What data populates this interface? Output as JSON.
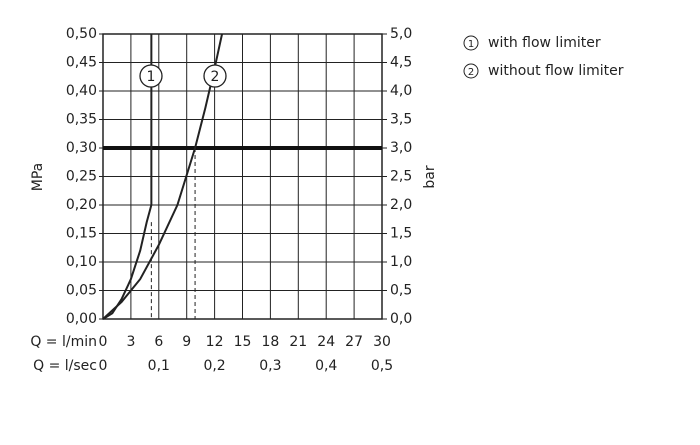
{
  "chart_data": {
    "type": "line",
    "xlabel": "Q = l/min",
    "x2label": "Q = l/sec",
    "ylabel": "MPa",
    "y2label": "bar",
    "xlim": [
      0,
      30
    ],
    "xticks": [
      0,
      3,
      6,
      9,
      12,
      15,
      18,
      21,
      24,
      27,
      30
    ],
    "x2lim": [
      0,
      0.5
    ],
    "x2ticks": [
      0,
      {
        "value": 0.1,
        "label": "0,1"
      },
      {
        "value": 0.2,
        "label": "0,2"
      },
      {
        "value": 0.3,
        "label": "0,3"
      },
      {
        "value": 0.4,
        "label": "0,4"
      },
      {
        "value": 0.5,
        "label": "0,5"
      }
    ],
    "ylim": [
      0,
      0.5
    ],
    "yticks": [
      {
        "value": 0,
        "label": "0,00"
      },
      {
        "value": 0.05,
        "label": "0,05"
      },
      {
        "value": 0.1,
        "label": "0,10"
      },
      {
        "value": 0.15,
        "label": "0,15"
      },
      {
        "value": 0.2,
        "label": "0,20"
      },
      {
        "value": 0.25,
        "label": "0,25"
      },
      {
        "value": 0.3,
        "label": "0,30"
      },
      {
        "value": 0.35,
        "label": "0,35"
      },
      {
        "value": 0.4,
        "label": "0,40"
      },
      {
        "value": 0.45,
        "label": "0,45"
      },
      {
        "value": 0.5,
        "label": "0,50"
      }
    ],
    "y2lim": [
      0,
      5
    ],
    "y2ticks": [
      {
        "value": 0,
        "label": "0,0"
      },
      {
        "value": 0.5,
        "label": "0,5"
      },
      {
        "value": 1,
        "label": "1,0"
      },
      {
        "value": 1.5,
        "label": "1,5"
      },
      {
        "value": 2,
        "label": "2,0"
      },
      {
        "value": 2.5,
        "label": "2,5"
      },
      {
        "value": 3,
        "label": "3,0"
      },
      {
        "value": 3.5,
        "label": "3,5"
      },
      {
        "value": 4,
        "label": "4,0"
      },
      {
        "value": 4.5,
        "label": "4,5"
      },
      {
        "value": 5,
        "label": "5,0"
      }
    ],
    "grid": true,
    "color": "#222222",
    "reference_line": 0.3,
    "series": [
      {
        "name": "with flow limiter",
        "marker_label": "1",
        "x": [
          0,
          1,
          2,
          3,
          4,
          4.7,
          5.2,
          5.2
        ],
        "values": [
          0,
          0.01,
          0.035,
          0.07,
          0.12,
          0.17,
          0.2,
          0.5
        ],
        "drop": {
          "x": 5.2,
          "y": 0.17
        }
      },
      {
        "name": "without flow limiter",
        "marker_label": "2",
        "x": [
          0,
          2,
          4,
          6,
          8,
          9.9,
          11,
          12,
          12.8
        ],
        "values": [
          0,
          0.03,
          0.07,
          0.13,
          0.2,
          0.3,
          0.37,
          0.44,
          0.5
        ],
        "drop": {
          "x": 9.9,
          "y": 0.3
        }
      }
    ]
  }
}
